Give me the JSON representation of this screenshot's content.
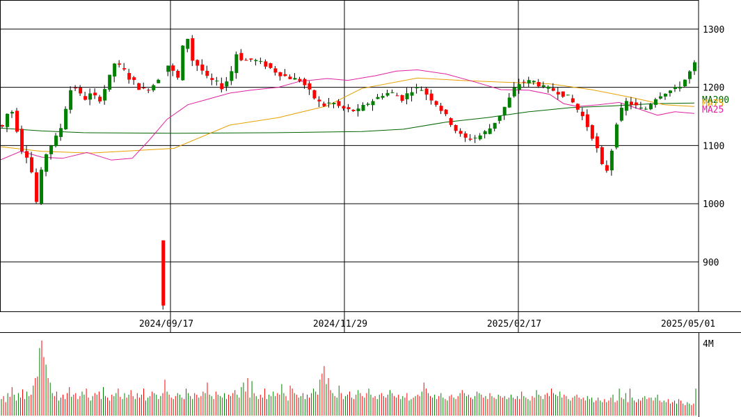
{
  "chart_data": [
    {
      "type": "candlestick",
      "title": "",
      "y_ticks": [
        900,
        1000,
        1100,
        1200,
        1300
      ],
      "ylim": [
        815,
        1350
      ],
      "x_tick_labels": [
        "2024/09/17",
        "2024/11/29",
        "2025/02/17",
        "2025/05/01"
      ],
      "up_color": "#008000",
      "down_color": "#ff0000",
      "ma_lines": [
        {
          "name": "MA200",
          "color": "#006400",
          "points": [
            [
              0,
              1130
            ],
            [
              60,
              1125
            ],
            [
              120,
              1122
            ],
            [
              250,
              1121
            ],
            [
              400,
              1122
            ],
            [
              520,
              1124
            ],
            [
              580,
              1128
            ],
            [
              640,
              1140
            ],
            [
              700,
              1148
            ],
            [
              760,
              1158
            ],
            [
              820,
              1165
            ],
            [
              880,
              1168
            ],
            [
              940,
              1172
            ],
            [
              998,
              1173
            ]
          ]
        },
        {
          "name": "MA75",
          "color": "#e8a000",
          "points": [
            [
              0,
              1098
            ],
            [
              60,
              1090
            ],
            [
              130,
              1087
            ],
            [
              250,
              1095
            ],
            [
              330,
              1135
            ],
            [
              400,
              1148
            ],
            [
              470,
              1168
            ],
            [
              520,
              1198
            ],
            [
              600,
              1216
            ],
            [
              660,
              1212
            ],
            [
              720,
              1209
            ],
            [
              790,
              1206
            ],
            [
              850,
              1196
            ],
            [
              910,
              1182
            ],
            [
              955,
              1170
            ],
            [
              998,
              1167
            ]
          ]
        },
        {
          "name": "MA25",
          "color": "#e020a0",
          "points": [
            [
              0,
              1075
            ],
            [
              30,
              1090
            ],
            [
              60,
              1080
            ],
            [
              90,
              1078
            ],
            [
              125,
              1088
            ],
            [
              160,
              1075
            ],
            [
              190,
              1078
            ],
            [
              215,
              1110
            ],
            [
              240,
              1145
            ],
            [
              270,
              1170
            ],
            [
              300,
              1180
            ],
            [
              330,
              1190
            ],
            [
              360,
              1195
            ],
            [
              400,
              1200
            ],
            [
              430,
              1210
            ],
            [
              470,
              1215
            ],
            [
              500,
              1212
            ],
            [
              540,
              1220
            ],
            [
              570,
              1228
            ],
            [
              600,
              1230
            ],
            [
              640,
              1223
            ],
            [
              680,
              1210
            ],
            [
              720,
              1196
            ],
            [
              760,
              1195
            ],
            [
              790,
              1188
            ],
            [
              810,
              1172
            ],
            [
              830,
              1167
            ],
            [
              860,
              1170
            ],
            [
              890,
              1174
            ],
            [
              920,
              1162
            ],
            [
              945,
              1152
            ],
            [
              970,
              1158
            ],
            [
              998,
              1155
            ]
          ]
        }
      ],
      "candle_count": 143,
      "candle_x_range": [
        3,
        998
      ],
      "price_path": [
        [
          0,
          1135
        ],
        [
          2,
          1130
        ],
        [
          5,
          1160
        ],
        [
          7,
          1158
        ],
        [
          9,
          1125
        ],
        [
          11,
          1095
        ],
        [
          12,
          1070
        ],
        [
          13,
          1085
        ],
        [
          15,
          1070
        ],
        [
          16,
          1040
        ],
        [
          17,
          1010
        ],
        [
          18,
          1000
        ],
        [
          19,
          1045
        ],
        [
          21,
          1065
        ],
        [
          22,
          1085
        ],
        [
          26,
          1112
        ],
        [
          28,
          1118
        ],
        [
          32,
          1180
        ],
        [
          34,
          1205
        ],
        [
          36,
          1198
        ],
        [
          39,
          1178
        ],
        [
          43,
          1190
        ],
        [
          46,
          1175
        ],
        [
          50,
          1208
        ],
        [
          52,
          1228
        ],
        [
          54,
          1250
        ],
        [
          56,
          1230
        ],
        [
          58,
          1228
        ],
        [
          60,
          1215
        ],
        [
          62,
          1210
        ],
        [
          64,
          1200
        ],
        [
          66,
          1195
        ],
        [
          70,
          1200
        ],
        [
          76,
          1230
        ],
        [
          78,
          1240
        ],
        [
          80,
          1225
        ],
        [
          82,
          1215
        ],
        [
          84,
          1265
        ],
        [
          86,
          1295
        ],
        [
          88,
          1250
        ],
        [
          90,
          1240
        ],
        [
          92,
          1235
        ],
        [
          96,
          1212
        ],
        [
          99,
          1210
        ],
        [
          102,
          1200
        ],
        [
          106,
          1220
        ],
        [
          108,
          1260
        ],
        [
          112,
          1245
        ],
        [
          116,
          1248
        ],
        [
          122,
          1238
        ],
        [
          126,
          1228
        ],
        [
          130,
          1220
        ],
        [
          134,
          1215
        ],
        [
          138,
          1212
        ],
        [
          144,
          1182
        ],
        [
          148,
          1168
        ],
        [
          152,
          1175
        ],
        [
          156,
          1165
        ],
        [
          160,
          1160
        ],
        [
          164,
          1160
        ],
        [
          168,
          1172
        ],
        [
          172,
          1180
        ],
        [
          176,
          1190
        ],
        [
          180,
          1190
        ],
        [
          184,
          1180
        ],
        [
          188,
          1195
        ],
        [
          192,
          1200
        ],
        [
          196,
          1185
        ],
        [
          200,
          1170
        ],
        [
          204,
          1150
        ],
        [
          208,
          1128
        ],
        [
          212,
          1112
        ],
        [
          216,
          1112
        ],
        [
          220,
          1118
        ],
        [
          224,
          1130
        ],
        [
          228,
          1150
        ],
        [
          232,
          1175
        ],
        [
          236,
          1205
        ],
        [
          240,
          1210
        ],
        [
          244,
          1210
        ],
        [
          248,
          1200
        ],
        [
          252,
          1196
        ],
        [
          256,
          1190
        ],
        [
          260,
          1182
        ],
        [
          266,
          1150
        ],
        [
          270,
          1120
        ],
        [
          273,
          1090
        ],
        [
          276,
          1050
        ],
        [
          278,
          1065
        ],
        [
          282,
          1150
        ],
        [
          286,
          1175
        ],
        [
          290,
          1168
        ],
        [
          294,
          1160
        ],
        [
          300,
          1185
        ],
        [
          304,
          1192
        ],
        [
          309,
          1198
        ],
        [
          313,
          1215
        ],
        [
          317,
          1240
        ]
      ],
      "price_path_scale": [
        0,
        317
      ],
      "spike_candle": {
        "index": 33,
        "open": 937,
        "close": 825,
        "high": 937,
        "low": 818
      },
      "volume": {
        "axis_label": "4M",
        "max": 4000000,
        "relative_bars": [
          0.22,
          0.26,
          0.18,
          0.3,
          0.25,
          0.38,
          0.28,
          0.2,
          0.3,
          0.24,
          0.35,
          0.22,
          0.32,
          0.26,
          0.28,
          0.4,
          0.5,
          0.52,
          0.9,
          1.0,
          0.78,
          0.68,
          0.5,
          0.44,
          0.3,
          0.26,
          0.32,
          0.2,
          0.24,
          0.28,
          0.22,
          0.3,
          0.38,
          0.25,
          0.28,
          0.3,
          0.22,
          0.26,
          0.32,
          0.28,
          0.36,
          0.24,
          0.2,
          0.26,
          0.3,
          0.28,
          0.32,
          0.22,
          0.38,
          0.26,
          0.24,
          0.2,
          0.28,
          0.26,
          0.3,
          0.36,
          0.25,
          0.22,
          0.3,
          0.24,
          0.28,
          0.34,
          0.26,
          0.22,
          0.3,
          0.24,
          0.28,
          0.36,
          0.2,
          0.24,
          0.26,
          0.32,
          0.3,
          0.28,
          0.22,
          0.26,
          0.3,
          0.48,
          0.32,
          0.28,
          0.24,
          0.22,
          0.26,
          0.3,
          0.28,
          0.24,
          0.22,
          0.36,
          0.3,
          0.26,
          0.22,
          0.3,
          0.28,
          0.24,
          0.26,
          0.32,
          0.3,
          0.44,
          0.28,
          0.26,
          0.22,
          0.32,
          0.28,
          0.26,
          0.24,
          0.3,
          0.22,
          0.28,
          0.26,
          0.3,
          0.34,
          0.28,
          0.24,
          0.38,
          0.44,
          0.32,
          0.5,
          0.24,
          0.46,
          0.3,
          0.26,
          0.22,
          0.28,
          0.24,
          0.36,
          0.22,
          0.28,
          0.26,
          0.32,
          0.26,
          0.3,
          0.28,
          0.42,
          0.3,
          0.26,
          0.2,
          0.4,
          0.36,
          0.3,
          0.28,
          0.24,
          0.26,
          0.3,
          0.22,
          0.28,
          0.24,
          0.3,
          0.36,
          0.32,
          0.28,
          0.48,
          0.56,
          0.66,
          0.42,
          0.5,
          0.34,
          0.3,
          0.26,
          0.24,
          0.4,
          0.3,
          0.22,
          0.26,
          0.28,
          0.32,
          0.24,
          0.22,
          0.28,
          0.34,
          0.3,
          0.26,
          0.24,
          0.3,
          0.36,
          0.28,
          0.24,
          0.26,
          0.22,
          0.28,
          0.3,
          0.26,
          0.24,
          0.28,
          0.34,
          0.3,
          0.26,
          0.24,
          0.28,
          0.22,
          0.26,
          0.24,
          0.3,
          0.2,
          0.22,
          0.24,
          0.26,
          0.28,
          0.26,
          0.32,
          0.44,
          0.36,
          0.3,
          0.26,
          0.24,
          0.28,
          0.22,
          0.26,
          0.3,
          0.24,
          0.22,
          0.2,
          0.26,
          0.28,
          0.24,
          0.22,
          0.26,
          0.3,
          0.34,
          0.3,
          0.26,
          0.28,
          0.24,
          0.22,
          0.26,
          0.32,
          0.3,
          0.28,
          0.24,
          0.26,
          0.22,
          0.3,
          0.26,
          0.24,
          0.22,
          0.28,
          0.26,
          0.24,
          0.26,
          0.22,
          0.24,
          0.28,
          0.24,
          0.22,
          0.26,
          0.22,
          0.32,
          0.26,
          0.24,
          0.22,
          0.2,
          0.26,
          0.24,
          0.34,
          0.28,
          0.26,
          0.22,
          0.28,
          0.3,
          0.26,
          0.36,
          0.3,
          0.28,
          0.26,
          0.32,
          0.24,
          0.28,
          0.26,
          0.22,
          0.2,
          0.24,
          0.26,
          0.28,
          0.24,
          0.22,
          0.24,
          0.2,
          0.26,
          0.22,
          0.24,
          0.18,
          0.2,
          0.24,
          0.2,
          0.18,
          0.22,
          0.18,
          0.2,
          0.24,
          0.28,
          0.18,
          0.2,
          0.36,
          0.24,
          0.22,
          0.3,
          0.18,
          0.36,
          0.24,
          0.2,
          0.18,
          0.22,
          0.2,
          0.24,
          0.26,
          0.22,
          0.24,
          0.24,
          0.2,
          0.24,
          0.28,
          0.2,
          0.18,
          0.2,
          0.18,
          0.22,
          0.16,
          0.18,
          0.2,
          0.16,
          0.22,
          0.2,
          0.16,
          0.14,
          0.18,
          0.16,
          0.14,
          0.16,
          0.36
        ]
      }
    }
  ],
  "labels": {
    "ma_legend": [
      "MA200",
      "MA75",
      "MA25"
    ],
    "volume_axis": "4M"
  }
}
